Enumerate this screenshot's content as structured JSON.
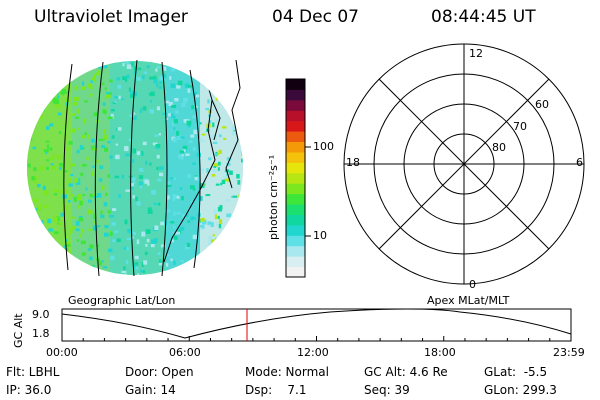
{
  "header": {
    "instrument": "Ultraviolet Imager",
    "date": "04 Dec 07",
    "time": "08:44:45 UT"
  },
  "colorbar": {
    "label": "photon cm⁻²s⁻¹",
    "ticks": [
      "100",
      "10"
    ],
    "scale": "log",
    "colors": [
      "#f2f2f2",
      "#d8eef0",
      "#a8e8ee",
      "#5fe0e6",
      "#22d6d0",
      "#10d6a0",
      "#1be070",
      "#3ee63a",
      "#7ce61e",
      "#b8e614",
      "#e6e60c",
      "#f4c20a",
      "#f49a08",
      "#ec5a10",
      "#d81818",
      "#b8102a",
      "#7a0a3a",
      "#3a0a3a",
      "#100010"
    ]
  },
  "polar": {
    "mlt_labels": [
      "12",
      "18",
      "6",
      "0"
    ],
    "lat_labels": [
      "60",
      "70",
      "80"
    ]
  },
  "timeline": {
    "ylabel": "GC Alt",
    "yticks": [
      "9.0",
      "1.8"
    ],
    "left_title": "Geographic Lat/Lon",
    "right_title": "Apex MLat/MLT",
    "xticks": [
      "00:00",
      "06:00",
      "12:00",
      "18:00",
      "23:59"
    ],
    "marker_color": "#e00000"
  },
  "info": {
    "row1": [
      "Flt: LBHL",
      "Door: Open",
      "Mode: Normal",
      "GC Alt: 4.6 Re",
      "GLat:  -5.5"
    ],
    "row2": [
      "IP: 36.0",
      "Gain: 14",
      "Dsp:    7.1",
      "Seq: 39",
      "GLon: 299.3"
    ]
  }
}
